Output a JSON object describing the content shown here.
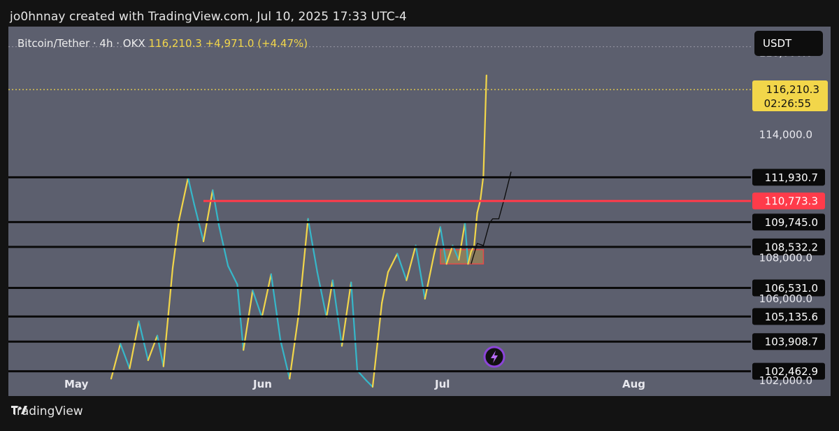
{
  "header": {
    "credit": "jo0hnnay created with TradingView.com, Jul 10, 2025 17:33 UTC-4"
  },
  "legend": {
    "symbol": "Bitcoin/Tether · 4h · OKX",
    "last": "116,210.3",
    "change": "+4,971.0 (+4.47%)"
  },
  "currency_button": "USDT",
  "footer": {
    "brand": "TradingView"
  },
  "colors": {
    "price_yellow": "#f2d64a",
    "price_cyan": "#36b7c9",
    "resistance_red": "#ff3b4a",
    "level_black": "#0a0a0a"
  },
  "chart_data": {
    "type": "line",
    "title": "Bitcoin/Tether · 4h · OKX",
    "x_ticks": [
      "May",
      "Jun",
      "Jul",
      "Aug"
    ],
    "y_ticks": [
      "118,000.0",
      "114,000.0",
      "108,000.0",
      "106,000.0",
      "102,000.0"
    ],
    "ylim": [
      101800,
      118600
    ],
    "last_price": {
      "value": 116210.3,
      "label": "116,210.3",
      "countdown": "02:26:55"
    },
    "horizontal_levels": [
      {
        "value": 111930.7,
        "label": "111,930.7",
        "color": "black"
      },
      {
        "value": 110773.3,
        "label": "110,773.3",
        "color": "red"
      },
      {
        "value": 109745.0,
        "label": "109,745.0",
        "color": "black"
      },
      {
        "value": 108532.2,
        "label": "108,532.2",
        "color": "black"
      },
      {
        "value": 106531.0,
        "label": "106,531.0",
        "color": "black"
      },
      {
        "value": 105135.6,
        "label": "105,135.6",
        "color": "black"
      },
      {
        "value": 103908.7,
        "label": "103,908.7",
        "color": "black"
      },
      {
        "value": 102462.9,
        "label": "102,462.9",
        "color": "black"
      }
    ],
    "demand_zone": {
      "low": 107700,
      "high": 108400
    },
    "price_series": {
      "x_day": [
        0,
        3,
        6,
        9,
        12,
        15,
        17,
        20,
        22,
        25,
        27,
        30,
        33,
        35,
        38,
        41,
        43,
        46,
        49,
        52,
        55,
        58,
        61,
        64,
        67,
        70,
        72,
        75,
        78,
        80,
        83,
        85,
        88,
        90,
        93,
        96,
        99,
        102,
        105
      ],
      "y": [
        102100,
        103800,
        102600,
        104900,
        103000,
        104200,
        102700,
        107500,
        109800,
        111900,
        110600,
        108800,
        111300,
        109600,
        107600,
        106700,
        103500,
        106400,
        105100,
        107200,
        104000,
        102100,
        105300,
        109900,
        107300,
        105100,
        106900,
        103700,
        106800,
        102500,
        102000,
        101700,
        105800,
        107300,
        108200,
        106900,
        108600,
        106000,
        108200
      ],
      "points_note": ""
    },
    "price_series_2": {
      "x_day": [
        105,
        107,
        109,
        111,
        113,
        115,
        116,
        117,
        118,
        119,
        120,
        121,
        122
      ],
      "y": [
        108200,
        109500,
        107700,
        108600,
        107900,
        109700,
        107700,
        108300,
        108600,
        110200,
        110800,
        112000,
        116900
      ],
      "last": 116210.3
    },
    "projection_path": {
      "x_day": [
        117,
        119,
        121,
        123,
        124,
        126,
        128,
        130
      ],
      "y": [
        107700,
        108700,
        108600,
        109700,
        109900,
        109900,
        111000,
        112200
      ]
    }
  }
}
